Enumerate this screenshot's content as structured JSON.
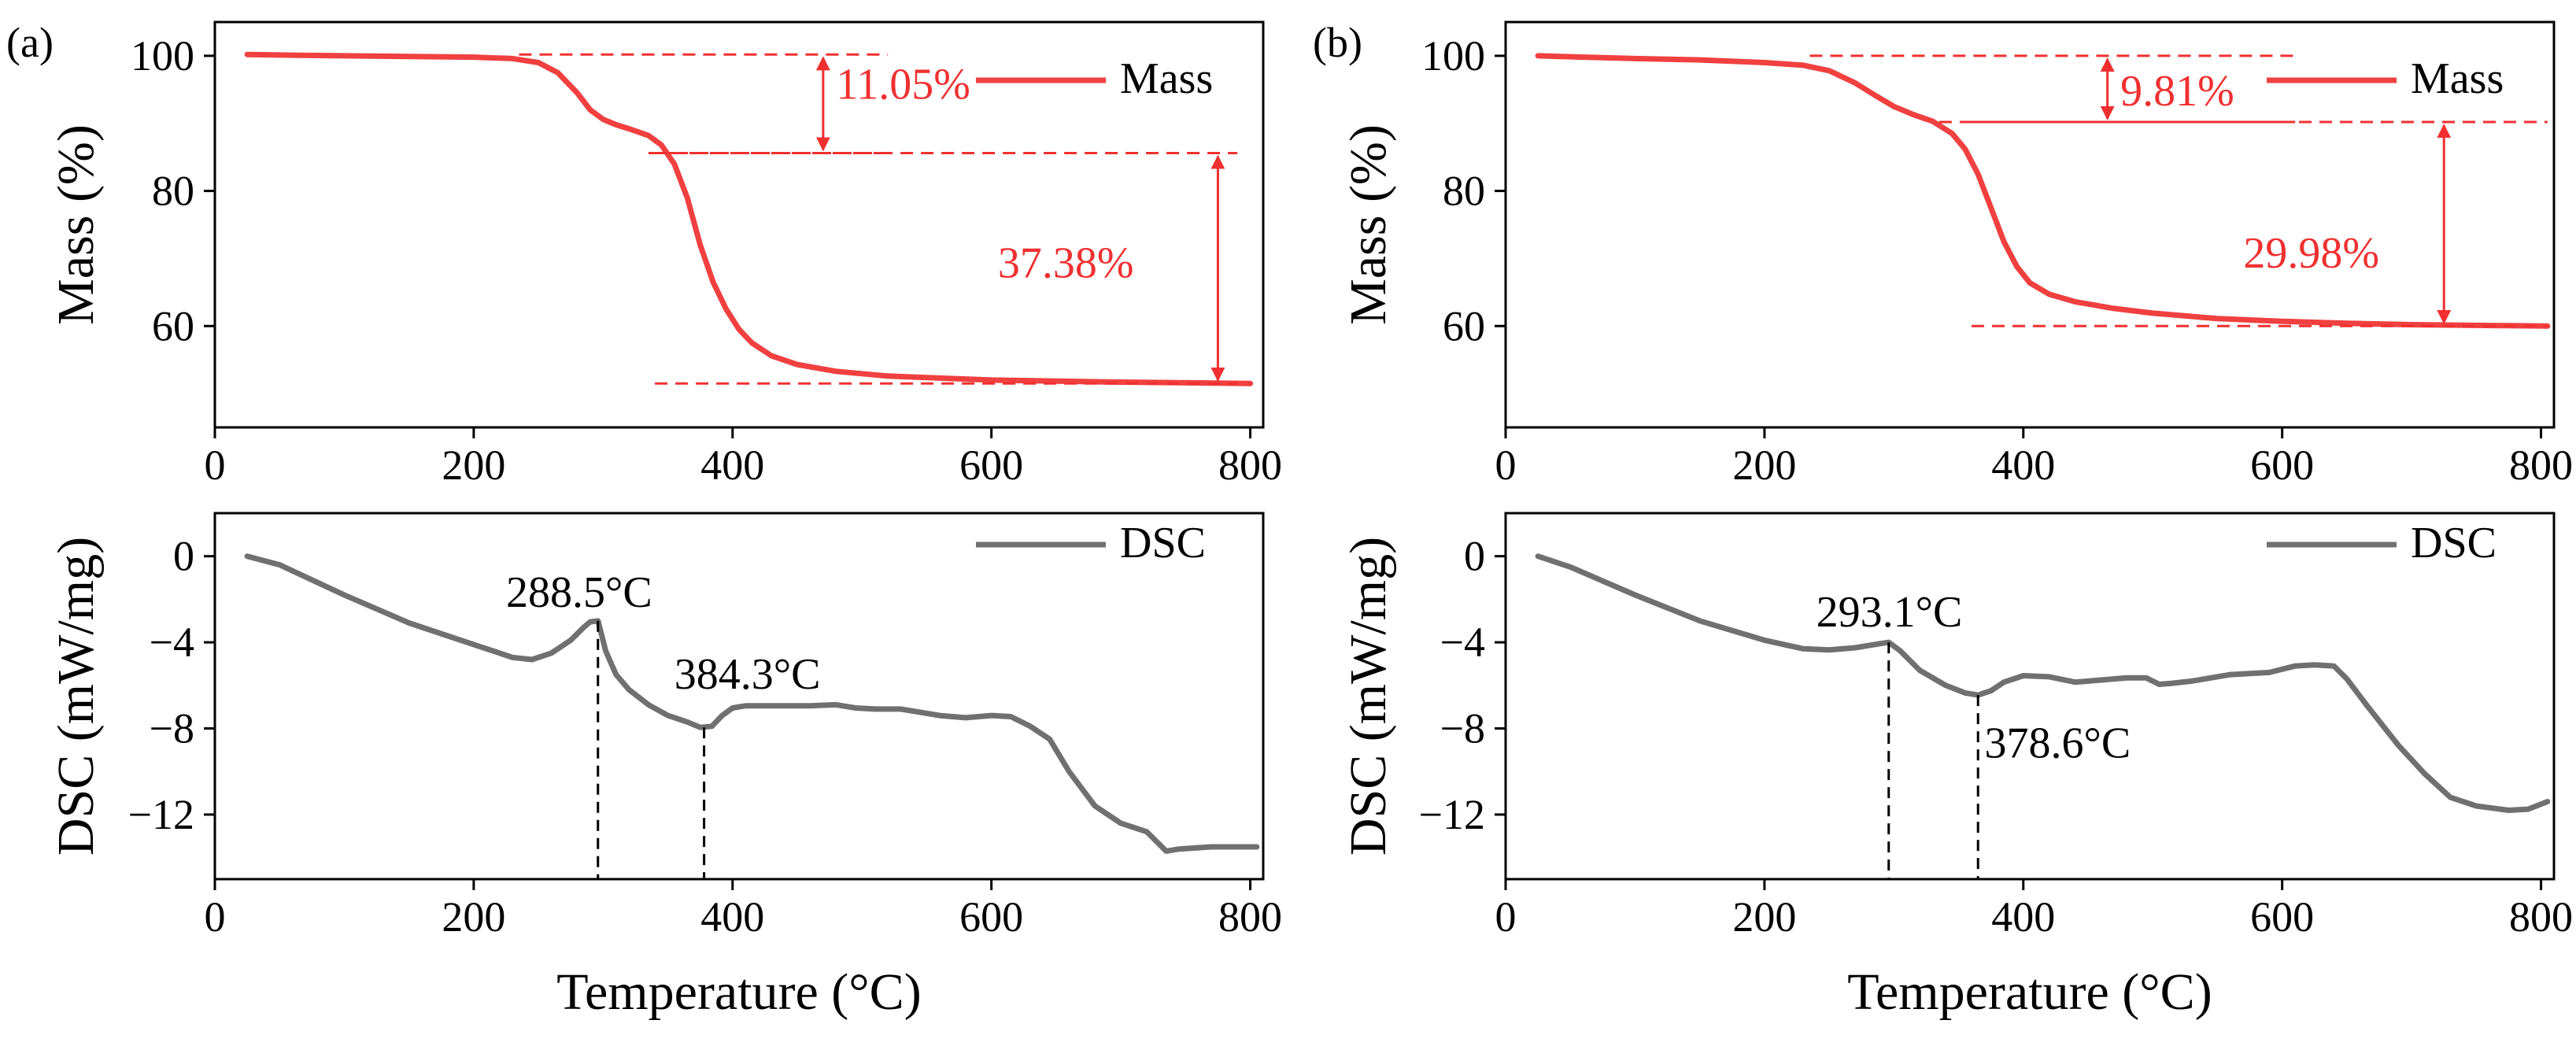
{
  "chart_data": [
    {
      "type": "line",
      "panel": "(a)",
      "kind": "tga",
      "xlabel": "",
      "ylabel": "Mass (%)",
      "xlim": [
        0,
        810
      ],
      "ylim": [
        45,
        105
      ],
      "xticks": [
        0,
        200,
        400,
        600,
        800
      ],
      "yticks": [
        60,
        80,
        100
      ],
      "color": "#f04040",
      "legend": "Mass",
      "series": [
        {
          "name": "Mass",
          "x": [
            25,
            60,
            100,
            150,
            200,
            230,
            250,
            265,
            280,
            290,
            300,
            310,
            320,
            335,
            345,
            355,
            365,
            375,
            385,
            395,
            405,
            415,
            430,
            450,
            480,
            520,
            600,
            700,
            800
          ],
          "y": [
            100.2,
            100.1,
            100.0,
            99.9,
            99.8,
            99.6,
            99.0,
            97.5,
            94.5,
            92.0,
            90.6,
            89.8,
            89.2,
            88.2,
            86.8,
            84.0,
            79.0,
            72.0,
            66.5,
            62.5,
            59.5,
            57.5,
            55.6,
            54.3,
            53.3,
            52.6,
            52.0,
            51.7,
            51.5
          ]
        }
      ],
      "annotations": [
        {
          "label": "11.05%",
          "x1": 235,
          "x2": 520,
          "y_top": 100.2,
          "y_bottom": 85.6,
          "arrow_x": 470,
          "text_x": 480,
          "text_y": 96
        },
        {
          "label": "37.38%",
          "x1": 340,
          "x2": 790,
          "y_top": 85.6,
          "y_bottom": 51.5,
          "arrow_x": 775,
          "text_x": 605,
          "text_y": 69.5
        }
      ]
    },
    {
      "type": "line",
      "panel": "(a)",
      "kind": "dsc",
      "xlabel": "Temperature (°C)",
      "ylabel": "DSC (mW/mg)",
      "xlim": [
        0,
        810
      ],
      "ylim": [
        -15,
        2
      ],
      "xticks": [
        0,
        200,
        400,
        600,
        800
      ],
      "yticks": [
        0,
        -4,
        -8,
        -12
      ],
      "ytick_labels": [
        "0",
        "−4",
        "−8",
        "−12"
      ],
      "color": "#707070",
      "legend": "DSC",
      "series": [
        {
          "name": "DSC",
          "x": [
            25,
            50,
            100,
            150,
            200,
            230,
            245,
            260,
            275,
            285,
            290,
            296,
            302,
            310,
            320,
            335,
            350,
            365,
            375,
            384,
            392,
            400,
            410,
            430,
            460,
            480,
            495,
            510,
            530,
            560,
            580,
            600,
            615,
            630,
            645,
            660,
            680,
            700,
            720,
            735,
            745,
            770,
            805
          ],
          "y": [
            0,
            -0.4,
            -1.8,
            -3.1,
            -4.1,
            -4.7,
            -4.8,
            -4.5,
            -3.9,
            -3.3,
            -3.05,
            -3.0,
            -4.4,
            -5.5,
            -6.2,
            -6.9,
            -7.4,
            -7.7,
            -7.95,
            -7.9,
            -7.4,
            -7.05,
            -6.95,
            -6.95,
            -6.95,
            -6.9,
            -7.05,
            -7.1,
            -7.1,
            -7.4,
            -7.5,
            -7.4,
            -7.45,
            -7.9,
            -8.5,
            -10.0,
            -11.6,
            -12.4,
            -12.8,
            -13.7,
            -13.6,
            -13.5,
            -13.5
          ]
        }
      ],
      "peaks": [
        {
          "label": "288.5°C",
          "x": 296,
          "y": -3.0,
          "label_x": 225,
          "label_y": -1.7
        },
        {
          "label": "384.3°C",
          "x": 378,
          "y": -7.95,
          "label_x": 355,
          "label_y": -5.5
        }
      ]
    },
    {
      "type": "line",
      "panel": "(b)",
      "kind": "tga",
      "xlabel": "",
      "ylabel": "Mass (%)",
      "xlim": [
        0,
        810
      ],
      "ylim": [
        45,
        105
      ],
      "xticks": [
        0,
        200,
        400,
        600,
        800
      ],
      "yticks": [
        60,
        80,
        100
      ],
      "color": "#f04040",
      "legend": "Mass",
      "series": [
        {
          "name": "Mass",
          "x": [
            25,
            60,
            100,
            150,
            200,
            230,
            250,
            270,
            285,
            300,
            315,
            330,
            345,
            355,
            365,
            375,
            385,
            395,
            405,
            420,
            440,
            470,
            500,
            550,
            600,
            650,
            700,
            750,
            805
          ],
          "y": [
            100.0,
            99.8,
            99.6,
            99.4,
            99.0,
            98.6,
            97.8,
            96.0,
            94.2,
            92.5,
            91.3,
            90.3,
            88.5,
            86.2,
            82.5,
            77.5,
            72.5,
            68.8,
            66.4,
            64.7,
            63.6,
            62.6,
            61.9,
            61.1,
            60.7,
            60.4,
            60.2,
            60.1,
            60.0
          ]
        }
      ],
      "annotations": [
        {
          "label": "9.81%",
          "x1": 235,
          "x2": 610,
          "y_top": 100.0,
          "y_bottom": 90.2,
          "arrow_x": 465,
          "text_x": 475,
          "text_y": 95
        },
        {
          "label": "29.98%",
          "x1": 360,
          "x2": 805,
          "y_top": 90.2,
          "y_bottom": 60.0,
          "arrow_x": 725,
          "text_x": 570,
          "text_y": 71
        }
      ]
    },
    {
      "type": "line",
      "panel": "(b)",
      "kind": "dsc",
      "xlabel": "Temperature (°C)",
      "ylabel": "DSC (mW/mg)",
      "xlim": [
        0,
        810
      ],
      "ylim": [
        -15,
        2
      ],
      "xticks": [
        0,
        200,
        400,
        600,
        800
      ],
      "yticks": [
        0,
        -4,
        -8,
        -12
      ],
      "ytick_labels": [
        "0",
        "−4",
        "−8",
        "−12"
      ],
      "color": "#707070",
      "legend": "DSC",
      "series": [
        {
          "name": "DSC",
          "x": [
            25,
            50,
            100,
            150,
            200,
            230,
            250,
            270,
            285,
            296,
            305,
            320,
            340,
            355,
            365,
            375,
            385,
            400,
            420,
            440,
            460,
            480,
            495,
            505,
            515,
            530,
            560,
            590,
            610,
            625,
            640,
            650,
            665,
            690,
            710,
            730,
            750,
            775,
            790,
            805
          ],
          "y": [
            0,
            -0.5,
            -1.8,
            -3.0,
            -3.9,
            -4.3,
            -4.35,
            -4.25,
            -4.1,
            -4.0,
            -4.4,
            -5.3,
            -6.0,
            -6.35,
            -6.45,
            -6.25,
            -5.85,
            -5.55,
            -5.6,
            -5.85,
            -5.75,
            -5.65,
            -5.65,
            -5.95,
            -5.9,
            -5.8,
            -5.5,
            -5.4,
            -5.1,
            -5.05,
            -5.1,
            -5.7,
            -6.9,
            -8.8,
            -10.1,
            -11.2,
            -11.6,
            -11.8,
            -11.75,
            -11.4
          ]
        }
      ],
      "peaks": [
        {
          "label": "293.1°C",
          "x": 296,
          "y": -4.0,
          "label_x": 240,
          "label_y": -2.6
        },
        {
          "label": "378.6°C",
          "x": 365,
          "y": -6.45,
          "label_x": 370,
          "label_y": -8.7
        }
      ]
    }
  ],
  "panels": {
    "a": {
      "label": "(a)"
    },
    "b": {
      "label": "(b)"
    }
  }
}
